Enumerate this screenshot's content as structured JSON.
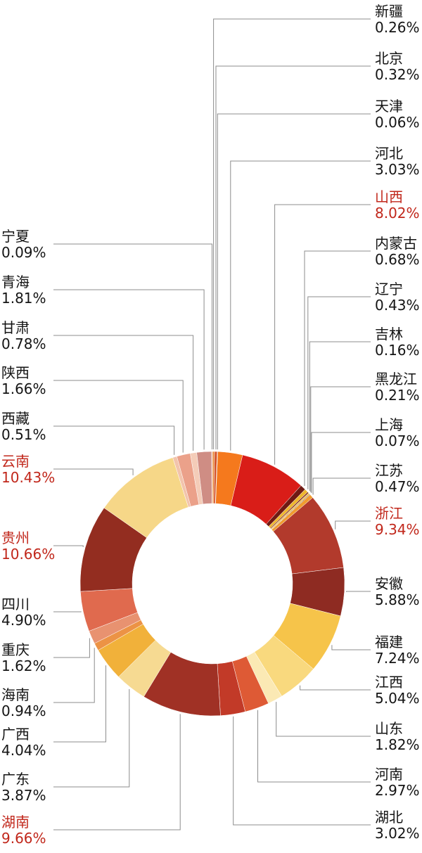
{
  "page": {
    "background": "#ffffff"
  },
  "chart_data": {
    "type": "pie",
    "subtype": "donut",
    "title": "",
    "unit": "percent",
    "start_angle": "top",
    "direction": "clockwise",
    "legend": "none",
    "grid": false,
    "text_color": "#141414",
    "highlight_color": "#c1271b",
    "leader_line_color": "#8c8c8c",
    "items": [
      {
        "name": "新疆",
        "value": 0.26,
        "pct": "0.26%",
        "color": "#e9893b",
        "highlight": false
      },
      {
        "name": "北京",
        "value": 0.32,
        "pct": "0.32%",
        "color": "#d5542c",
        "highlight": false
      },
      {
        "name": "天津",
        "value": 0.06,
        "pct": "0.06%",
        "color": "#93261c",
        "highlight": false
      },
      {
        "name": "河北",
        "value": 3.03,
        "pct": "3.03%",
        "color": "#f5791d",
        "highlight": false
      },
      {
        "name": "山西",
        "value": 8.02,
        "pct": "8.02%",
        "color": "#d91d18",
        "highlight": true
      },
      {
        "name": "内蒙古",
        "value": 0.68,
        "pct": "0.68%",
        "color": "#6f1b14",
        "highlight": false
      },
      {
        "name": "辽宁",
        "value": 0.43,
        "pct": "0.43%",
        "color": "#eeb62d",
        "highlight": false
      },
      {
        "name": "吉林",
        "value": 0.16,
        "pct": "0.16%",
        "color": "#7e211a",
        "highlight": false
      },
      {
        "name": "黑龙江",
        "value": 0.21,
        "pct": "0.21%",
        "color": "#edc35c",
        "highlight": false
      },
      {
        "name": "上海",
        "value": 0.07,
        "pct": "0.07%",
        "color": "#561410",
        "highlight": false
      },
      {
        "name": "江苏",
        "value": 0.47,
        "pct": "0.47%",
        "color": "#f09b2f",
        "highlight": false
      },
      {
        "name": "浙江",
        "value": 9.34,
        "pct": "9.34%",
        "color": "#b23a2c",
        "highlight": true
      },
      {
        "name": "安徽",
        "value": 5.88,
        "pct": "5.88%",
        "color": "#8e2b22",
        "highlight": false
      },
      {
        "name": "福建",
        "value": 7.24,
        "pct": "7.24%",
        "color": "#f6c44a",
        "highlight": false
      },
      {
        "name": "江西",
        "value": 5.04,
        "pct": "5.04%",
        "color": "#f9d97e",
        "highlight": false
      },
      {
        "name": "山东",
        "value": 1.82,
        "pct": "1.82%",
        "color": "#fbe9b4",
        "highlight": false
      },
      {
        "name": "河南",
        "value": 2.97,
        "pct": "2.97%",
        "color": "#de5a35",
        "highlight": false
      },
      {
        "name": "湖北",
        "value": 3.02,
        "pct": "3.02%",
        "color": "#c23a28",
        "highlight": false
      },
      {
        "name": "湖南",
        "value": 9.66,
        "pct": "9.66%",
        "color": "#a03125",
        "highlight": true
      },
      {
        "name": "广东",
        "value": 3.87,
        "pct": "3.87%",
        "color": "#f6da92",
        "highlight": false
      },
      {
        "name": "广西",
        "value": 4.04,
        "pct": "4.04%",
        "color": "#f1b13a",
        "highlight": false
      },
      {
        "name": "海南",
        "value": 0.94,
        "pct": "0.94%",
        "color": "#ec9345",
        "highlight": false
      },
      {
        "name": "重庆",
        "value": 1.62,
        "pct": "1.62%",
        "color": "#e89270",
        "highlight": false
      },
      {
        "name": "四川",
        "value": 4.9,
        "pct": "4.90%",
        "color": "#e06a4e",
        "highlight": false
      },
      {
        "name": "贵州",
        "value": 10.66,
        "pct": "10.66%",
        "color": "#932d20",
        "highlight": true
      },
      {
        "name": "云南",
        "value": 10.43,
        "pct": "10.43%",
        "color": "#f6d788",
        "highlight": true
      },
      {
        "name": "西藏",
        "value": 0.51,
        "pct": "0.51%",
        "color": "#f2c4ac",
        "highlight": false
      },
      {
        "name": "陕西",
        "value": 1.66,
        "pct": "1.66%",
        "color": "#eba18a",
        "highlight": false
      },
      {
        "name": "甘肃",
        "value": 0.78,
        "pct": "0.78%",
        "color": "#f4ccb8",
        "highlight": false
      },
      {
        "name": "青海",
        "value": 1.81,
        "pct": "1.81%",
        "color": "#cf8d84",
        "highlight": false
      },
      {
        "name": "宁夏",
        "value": 0.09,
        "pct": "0.09%",
        "color": "#e7b7a6",
        "highlight": false
      }
    ]
  }
}
